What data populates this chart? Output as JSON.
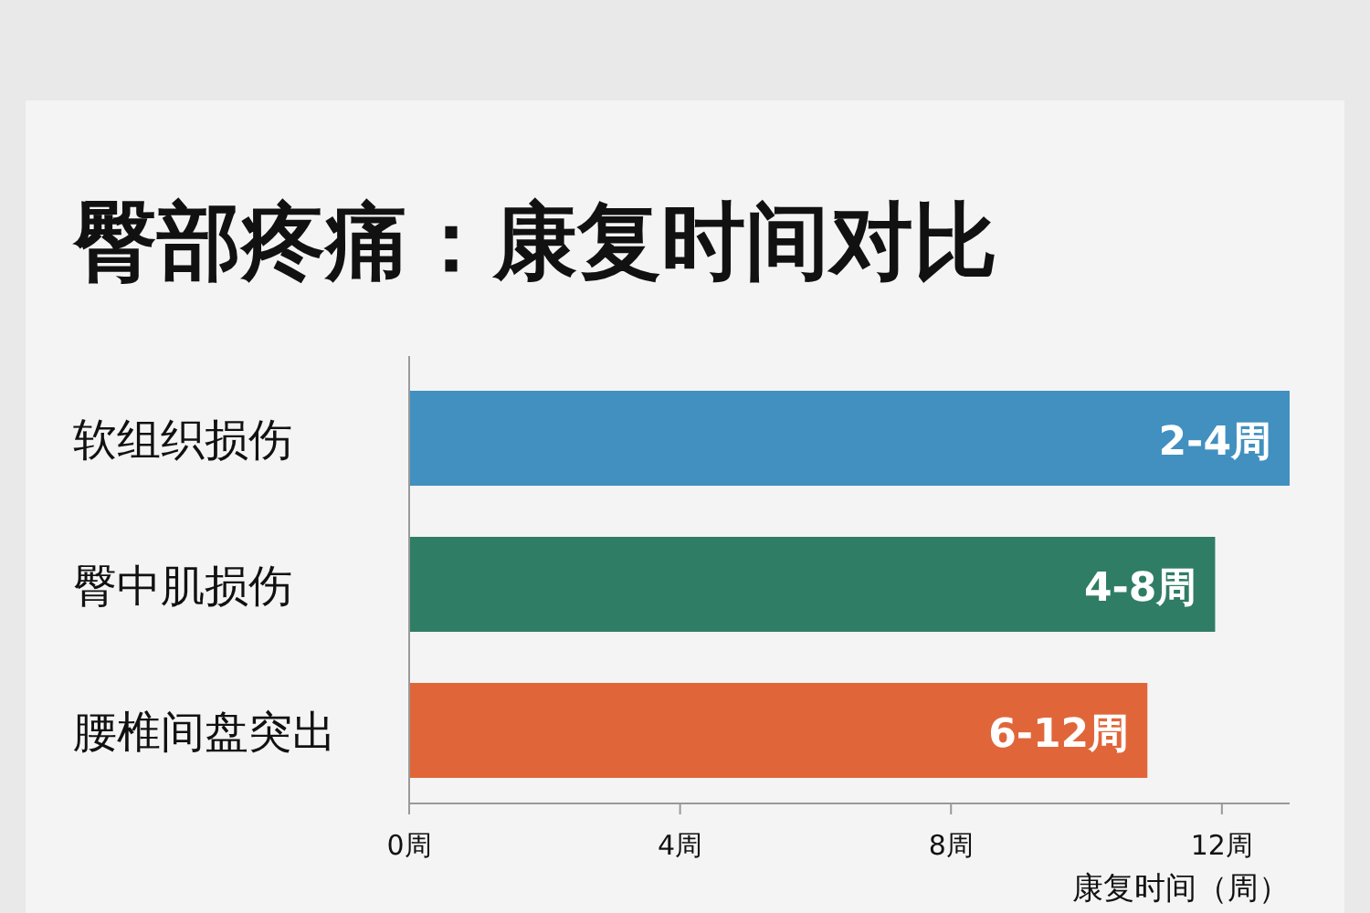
{
  "chart_data": {
    "type": "bar",
    "orientation": "horizontal",
    "title": "臀部疼痛：康复时间对比",
    "xlabel": "康复时间（周）",
    "categories": [
      "软组织损伤",
      "臀中肌损伤",
      "腰椎间盘突出"
    ],
    "values": [
      13,
      11.9,
      10.9
    ],
    "colors": [
      "#4190c0",
      "#2f7d64",
      "#e0663a"
    ],
    "value_labels": [
      "2-4周",
      "4-8周",
      "6-12周"
    ],
    "xlim": [
      0,
      13
    ],
    "xticks": [
      {
        "value": 0,
        "label": "0周"
      },
      {
        "value": 4,
        "label": "4周"
      },
      {
        "value": 8,
        "label": "8周"
      },
      {
        "value": 12,
        "label": "12周"
      }
    ]
  }
}
